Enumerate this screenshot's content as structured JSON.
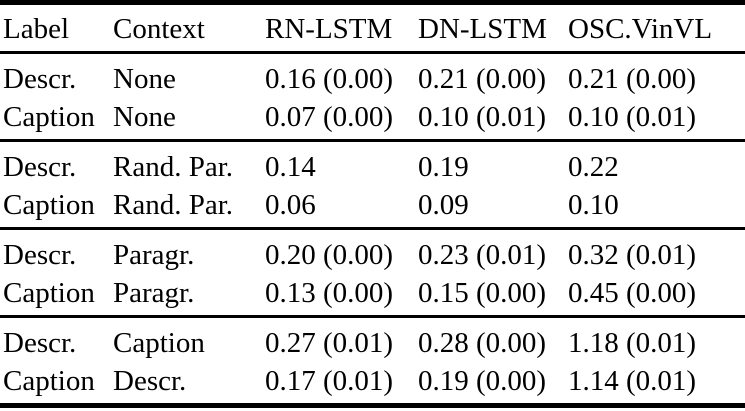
{
  "page": {
    "background_color": "#ffffff",
    "text_color": "#000000",
    "rule_color": "#000000"
  },
  "table": {
    "columns": [
      "Label",
      "Context",
      "RN-LSTM",
      "DN-LSTM",
      "OSC.VinVL"
    ],
    "groups": [
      {
        "rows": [
          [
            "Descr.",
            "None",
            "0.16 (0.00)",
            "0.21 (0.00)",
            "0.21 (0.00)"
          ],
          [
            "Caption",
            "None",
            "0.07 (0.00)",
            "0.10 (0.01)",
            "0.10 (0.01)"
          ]
        ]
      },
      {
        "rows": [
          [
            "Descr.",
            "Rand. Par.",
            "0.14",
            "0.19",
            "0.22"
          ],
          [
            "Caption",
            "Rand. Par.",
            "0.06",
            "0.09",
            "0.10"
          ]
        ]
      },
      {
        "rows": [
          [
            "Descr.",
            "Paragr.",
            "0.20 (0.00)",
            "0.23 (0.01)",
            "0.32 (0.01)"
          ],
          [
            "Caption",
            "Paragr.",
            "0.13 (0.00)",
            "0.15 (0.00)",
            "0.45 (0.00)"
          ]
        ]
      },
      {
        "rows": [
          [
            "Descr.",
            "Caption",
            "0.27 (0.01)",
            "0.28 (0.00)",
            "1.18 (0.01)"
          ],
          [
            "Caption",
            "Descr.",
            "0.17 (0.01)",
            "0.19 (0.00)",
            "1.14 (0.01)"
          ]
        ]
      }
    ]
  }
}
